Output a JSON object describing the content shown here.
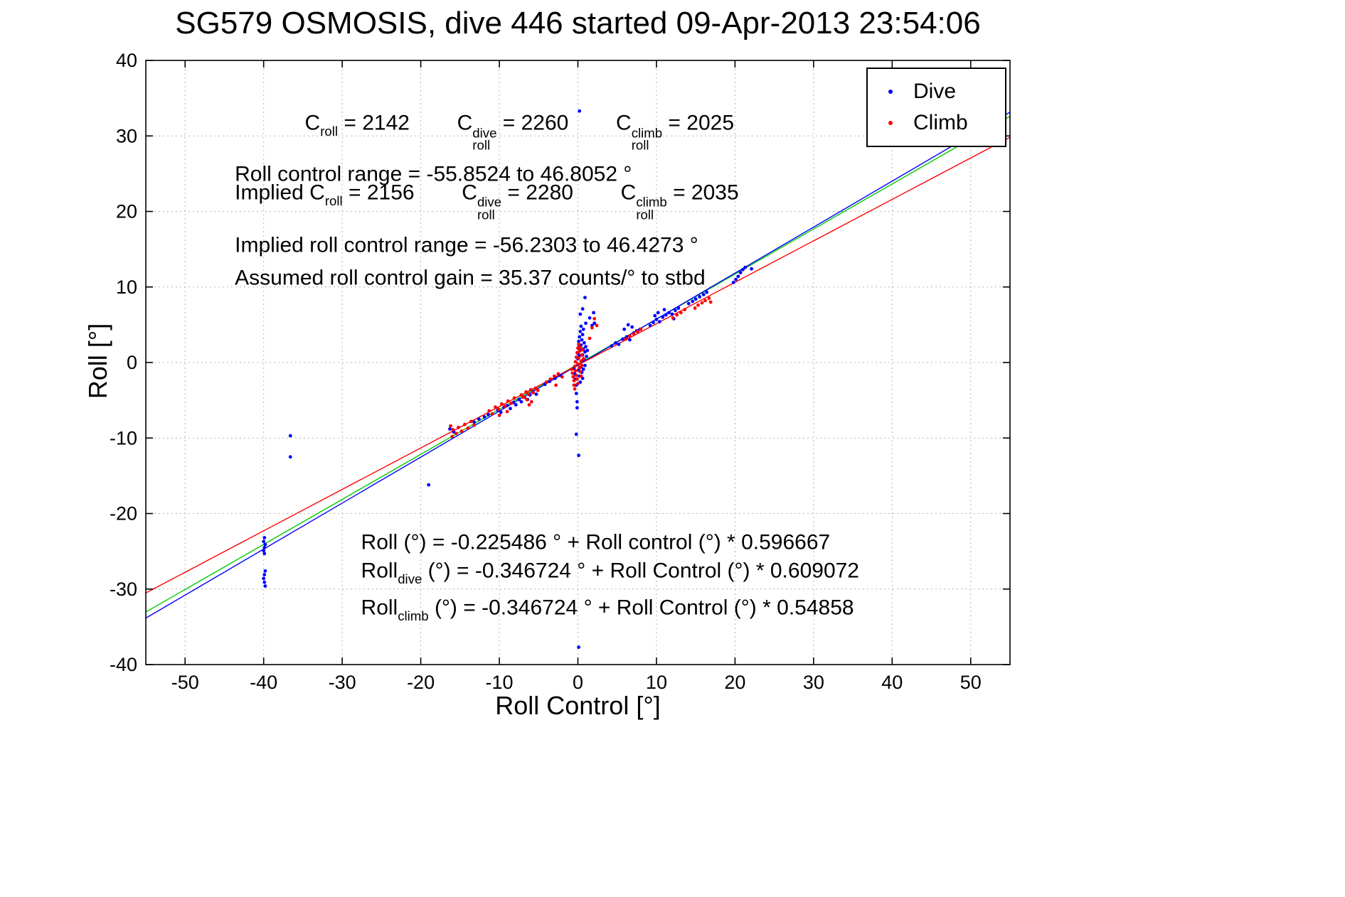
{
  "chart_data": {
    "type": "scatter",
    "title": "SG579 OSMOSIS, dive 446 started 09-Apr-2013 23:54:06",
    "xlabel": "Roll Control [°]",
    "ylabel": "Roll [°]",
    "xlim": [
      -55,
      55
    ],
    "ylim": [
      -40,
      40
    ],
    "xticks": [
      -50,
      -40,
      -30,
      -20,
      -10,
      0,
      10,
      20,
      30,
      40,
      50
    ],
    "yticks": [
      -40,
      -30,
      -20,
      -10,
      0,
      10,
      20,
      30,
      40
    ],
    "grid": "dotted",
    "grid_color": "#b4b4b4",
    "legend": {
      "position": "top-right",
      "entries": [
        {
          "label": "Dive",
          "color": "#0000ff"
        },
        {
          "label": "Climb",
          "color": "#ff0000"
        }
      ]
    },
    "fit_lines": [
      {
        "name": "all-fit-line",
        "color": "#00cc00",
        "intercept": -0.225486,
        "slope": 0.596667
      },
      {
        "name": "dive-fit-line",
        "color": "#0000ff",
        "intercept": -0.346724,
        "slope": 0.609072
      },
      {
        "name": "climb-fit-line",
        "color": "#ff0000",
        "intercept": -0.346724,
        "slope": 0.54858
      }
    ],
    "series": [
      {
        "name": "Dive",
        "color": "#0000ff",
        "marker": "dot",
        "points": [
          [
            -39.9,
            -23.2
          ],
          [
            -40,
            -23.7
          ],
          [
            -39.8,
            -24.1
          ],
          [
            -39.9,
            -24.5
          ],
          [
            -40,
            -24.9
          ],
          [
            -39.9,
            -25.3
          ],
          [
            -39.8,
            -27.6
          ],
          [
            -39.9,
            -28.1
          ],
          [
            -40,
            -28.6
          ],
          [
            -39.9,
            -29.1
          ],
          [
            -39.8,
            -29.6
          ],
          [
            -36.6,
            -9.7
          ],
          [
            -36.6,
            -12.5
          ],
          [
            -19,
            -16.2
          ],
          [
            -16.3,
            -8.8
          ],
          [
            -15.8,
            -9.2
          ],
          [
            -13.2,
            -7.9
          ],
          [
            -12.6,
            -7.5
          ],
          [
            -11.9,
            -7.2
          ],
          [
            -11.4,
            -6.9
          ],
          [
            -10.2,
            -6.3
          ],
          [
            -9.8,
            -6.6
          ],
          [
            -9.4,
            -5.9
          ],
          [
            -9,
            -5.7
          ],
          [
            -8.6,
            -6.1
          ],
          [
            -8.2,
            -5.3
          ],
          [
            -7.9,
            -5.6
          ],
          [
            -7.5,
            -4.9
          ],
          [
            -7.2,
            -5.2
          ],
          [
            -6.8,
            -4.6
          ],
          [
            -6.4,
            -4.9
          ],
          [
            -6.1,
            -4.3
          ],
          [
            -5.7,
            -3.9
          ],
          [
            -5.3,
            -4.2
          ],
          [
            -4.2,
            -2.9
          ],
          [
            -3.6,
            -2.5
          ],
          [
            -2.9,
            -2.1
          ],
          [
            -2.3,
            -1.7
          ],
          [
            -0.5,
            -0.8
          ],
          [
            -0.4,
            -1.5
          ],
          [
            -0.3,
            -2.2
          ],
          [
            -0.2,
            -3
          ],
          [
            -0.2,
            -4.1
          ],
          [
            -0.1,
            -5.2
          ],
          [
            -0.1,
            -6
          ],
          [
            0,
            -0.3
          ],
          [
            0,
            0.5
          ],
          [
            0,
            1.2
          ],
          [
            0.1,
            2
          ],
          [
            0.1,
            2.8
          ],
          [
            0.1,
            -1
          ],
          [
            0.2,
            -1.8
          ],
          [
            0.2,
            0.9
          ],
          [
            0.2,
            3.4
          ],
          [
            0.3,
            -2.6
          ],
          [
            0.3,
            1.6
          ],
          [
            0.3,
            4.1
          ],
          [
            0.4,
            -0.6
          ],
          [
            0.4,
            2.3
          ],
          [
            0.4,
            4.8
          ],
          [
            0.5,
            -1.3
          ],
          [
            0.5,
            0.2
          ],
          [
            0.5,
            3
          ],
          [
            0.6,
            -2.1
          ],
          [
            0.6,
            1
          ],
          [
            0.6,
            3.7
          ],
          [
            0.7,
            -0.9
          ],
          [
            0.7,
            1.8
          ],
          [
            0.7,
            4.4
          ],
          [
            0.8,
            0.4
          ],
          [
            0.8,
            2.6
          ],
          [
            0.9,
            -0.4
          ],
          [
            0.9,
            1.4
          ],
          [
            1,
            2.1
          ],
          [
            1,
            5.2
          ],
          [
            1.1,
            0.8
          ],
          [
            1.2,
            1.6
          ],
          [
            0.3,
            6.4
          ],
          [
            0.6,
            7.1
          ],
          [
            0.9,
            8.6
          ],
          [
            0.2,
            33.3
          ],
          [
            -0.2,
            -9.5
          ],
          [
            0.1,
            -12.3
          ],
          [
            0.1,
            -37.7
          ],
          [
            1.5,
            5.9
          ],
          [
            2,
            6.6
          ],
          [
            1.8,
            4.9
          ],
          [
            2.1,
            5.2
          ],
          [
            4.3,
            2.2
          ],
          [
            4.8,
            2.6
          ],
          [
            5.2,
            2.4
          ],
          [
            5.7,
            3.1
          ],
          [
            6.2,
            3.4
          ],
          [
            6.6,
            3
          ],
          [
            7.1,
            3.9
          ],
          [
            7.5,
            4.2
          ],
          [
            7.9,
            4.4
          ],
          [
            6.9,
            4.7
          ],
          [
            5.9,
            4.4
          ],
          [
            6.4,
            5
          ],
          [
            9.2,
            4.9
          ],
          [
            9.6,
            5.3
          ],
          [
            10,
            5.7
          ],
          [
            10.4,
            5.4
          ],
          [
            10.8,
            6
          ],
          [
            11.2,
            6.3
          ],
          [
            11.6,
            6.6
          ],
          [
            12,
            6.4
          ],
          [
            12.4,
            6.9
          ],
          [
            12.8,
            7.2
          ],
          [
            11,
            7
          ],
          [
            10.2,
            6.6
          ],
          [
            9.8,
            6.2
          ],
          [
            12.2,
            5.8
          ],
          [
            14.1,
            7.8
          ],
          [
            14.6,
            8.1
          ],
          [
            15,
            8.4
          ],
          [
            15.5,
            8.7
          ],
          [
            16,
            9
          ],
          [
            16.4,
            9.3
          ],
          [
            19.8,
            10.6
          ],
          [
            20.1,
            11
          ],
          [
            20.4,
            11.4
          ],
          [
            20.7,
            11.9
          ],
          [
            21,
            12.3
          ],
          [
            21.3,
            12.6
          ],
          [
            22.1,
            12.4
          ]
        ]
      },
      {
        "name": "Climb",
        "color": "#ff0000",
        "marker": "dot",
        "points": [
          [
            -16.2,
            -8.4
          ],
          [
            -15.9,
            -8.9
          ],
          [
            -15.5,
            -9.4
          ],
          [
            -15.2,
            -8.6
          ],
          [
            -14.8,
            -9.1
          ],
          [
            -14.4,
            -8.2
          ],
          [
            -14,
            -8.7
          ],
          [
            -13.6,
            -7.8
          ],
          [
            -13.2,
            -8.3
          ],
          [
            -16,
            -9.8
          ],
          [
            -11.3,
            -6.4
          ],
          [
            -10.9,
            -6.8
          ],
          [
            -10.5,
            -5.9
          ],
          [
            -10.1,
            -6.2
          ],
          [
            -9.7,
            -5.5
          ],
          [
            -9.3,
            -5.8
          ],
          [
            -8.9,
            -5.1
          ],
          [
            -8.5,
            -5.4
          ],
          [
            -8.1,
            -4.7
          ],
          [
            -9,
            -6.5
          ],
          [
            -10,
            -7
          ],
          [
            -7.2,
            -4.3
          ],
          [
            -6.9,
            -4.6
          ],
          [
            -6.6,
            -3.9
          ],
          [
            -6.3,
            -4.2
          ],
          [
            -6,
            -3.6
          ],
          [
            -5.7,
            -4
          ],
          [
            -5.4,
            -3.4
          ],
          [
            -5.1,
            -3.7
          ],
          [
            -6.5,
            -4.9
          ],
          [
            -5.9,
            -5.2
          ],
          [
            -6.2,
            -5.6
          ],
          [
            -4,
            -2.6
          ],
          [
            -3.5,
            -2.2
          ],
          [
            -3,
            -1.8
          ],
          [
            -2.5,
            -1.5
          ],
          [
            -2,
            -1.9
          ],
          [
            -2.8,
            -3
          ],
          [
            -0.8,
            -0.9
          ],
          [
            -0.7,
            -1.4
          ],
          [
            -0.6,
            -1.9
          ],
          [
            -0.5,
            -2.4
          ],
          [
            -0.5,
            -3
          ],
          [
            -0.4,
            -0.5
          ],
          [
            -0.4,
            -3.5
          ],
          [
            -0.3,
            0.1
          ],
          [
            -0.3,
            -1.1
          ],
          [
            -0.2,
            0.7
          ],
          [
            -0.2,
            -1.7
          ],
          [
            -0.1,
            1.3
          ],
          [
            -0.1,
            -2.2
          ],
          [
            0,
            1.9
          ],
          [
            0,
            -0.2
          ],
          [
            0,
            -2.8
          ],
          [
            0.1,
            2.4
          ],
          [
            0.1,
            0.6
          ],
          [
            0.2,
            -0.7
          ],
          [
            0.2,
            1.5
          ],
          [
            0.3,
            -1.2
          ],
          [
            0.3,
            2
          ],
          [
            0.4,
            0.2
          ],
          [
            0.4,
            -1.8
          ],
          [
            0.5,
            1
          ],
          [
            0.5,
            -0.4
          ],
          [
            0.6,
            1.7
          ],
          [
            0.7,
            0.5
          ],
          [
            1.8,
            4.6
          ],
          [
            2.1,
            5.8
          ],
          [
            2.4,
            4.9
          ],
          [
            1.5,
            3.2
          ],
          [
            6.1,
            3.1
          ],
          [
            6.6,
            3.5
          ],
          [
            7.1,
            3.8
          ],
          [
            7.6,
            4.1
          ],
          [
            8,
            4.4
          ],
          [
            12.1,
            5.9
          ],
          [
            12.6,
            6.3
          ],
          [
            13.1,
            6.6
          ],
          [
            13.6,
            7
          ],
          [
            14.9,
            7.2
          ],
          [
            15.3,
            7.6
          ],
          [
            15.8,
            7.9
          ],
          [
            16.2,
            8.2
          ],
          [
            16.7,
            8.5
          ],
          [
            16.9,
            8
          ]
        ]
      }
    ],
    "annotations": [
      {
        "name": "c-roll-values-annotation",
        "pos": [
          0.184,
          0.118
        ],
        "segments": [
          {
            "t": "C"
          },
          {
            "sub": "roll"
          },
          {
            "t": " = 2142        "
          },
          {
            "t": "C"
          },
          {
            "stack": [
              "dive",
              "roll"
            ]
          },
          {
            "t": " = 2260        "
          },
          {
            "t": "C"
          },
          {
            "stack": [
              "climb",
              "roll"
            ]
          },
          {
            "t": " = 2025"
          }
        ]
      },
      {
        "name": "roll-control-range-annotation",
        "pos": [
          0.103,
          0.188
        ],
        "segments": [
          {
            "t": "Roll control range = -55.8524 to 46.8052 °"
          }
        ]
      },
      {
        "name": "implied-c-roll-annotation",
        "pos": [
          0.103,
          0.233
        ],
        "segments": [
          {
            "t": "Implied C"
          },
          {
            "sub": "roll"
          },
          {
            "t": " = 2156        "
          },
          {
            "t": "C"
          },
          {
            "stack": [
              "dive",
              "roll"
            ]
          },
          {
            "t": " = 2280        "
          },
          {
            "t": "C"
          },
          {
            "stack": [
              "climb",
              "roll"
            ]
          },
          {
            "t": " = 2035"
          }
        ]
      },
      {
        "name": "implied-roll-control-range-annotation",
        "pos": [
          0.103,
          0.306
        ],
        "segments": [
          {
            "t": "Implied roll control range = -56.2303 to 46.4273 °"
          }
        ]
      },
      {
        "name": "assumed-gain-annotation",
        "pos": [
          0.103,
          0.36
        ],
        "segments": [
          {
            "t": "Assumed roll control gain = 35.37 counts/° to stbd"
          }
        ]
      },
      {
        "name": "roll-fit-equation",
        "pos": [
          0.249,
          0.798
        ],
        "segments": [
          {
            "t": "Roll (°) = -0.225486 ° + Roll control (°) * 0.596667"
          }
        ]
      },
      {
        "name": "roll-dive-fit-equation",
        "pos": [
          0.249,
          0.848
        ],
        "segments": [
          {
            "t": "Roll"
          },
          {
            "sub": "dive"
          },
          {
            "t": " (°) = -0.346724 ° + Roll Control (°) * 0.609072"
          }
        ]
      },
      {
        "name": "roll-climb-fit-equation",
        "pos": [
          0.249,
          0.909
        ],
        "segments": [
          {
            "t": "Roll"
          },
          {
            "sub": "climb"
          },
          {
            "t": " (°) = -0.346724 ° + Roll Control (°) * 0.54858"
          }
        ]
      }
    ]
  }
}
